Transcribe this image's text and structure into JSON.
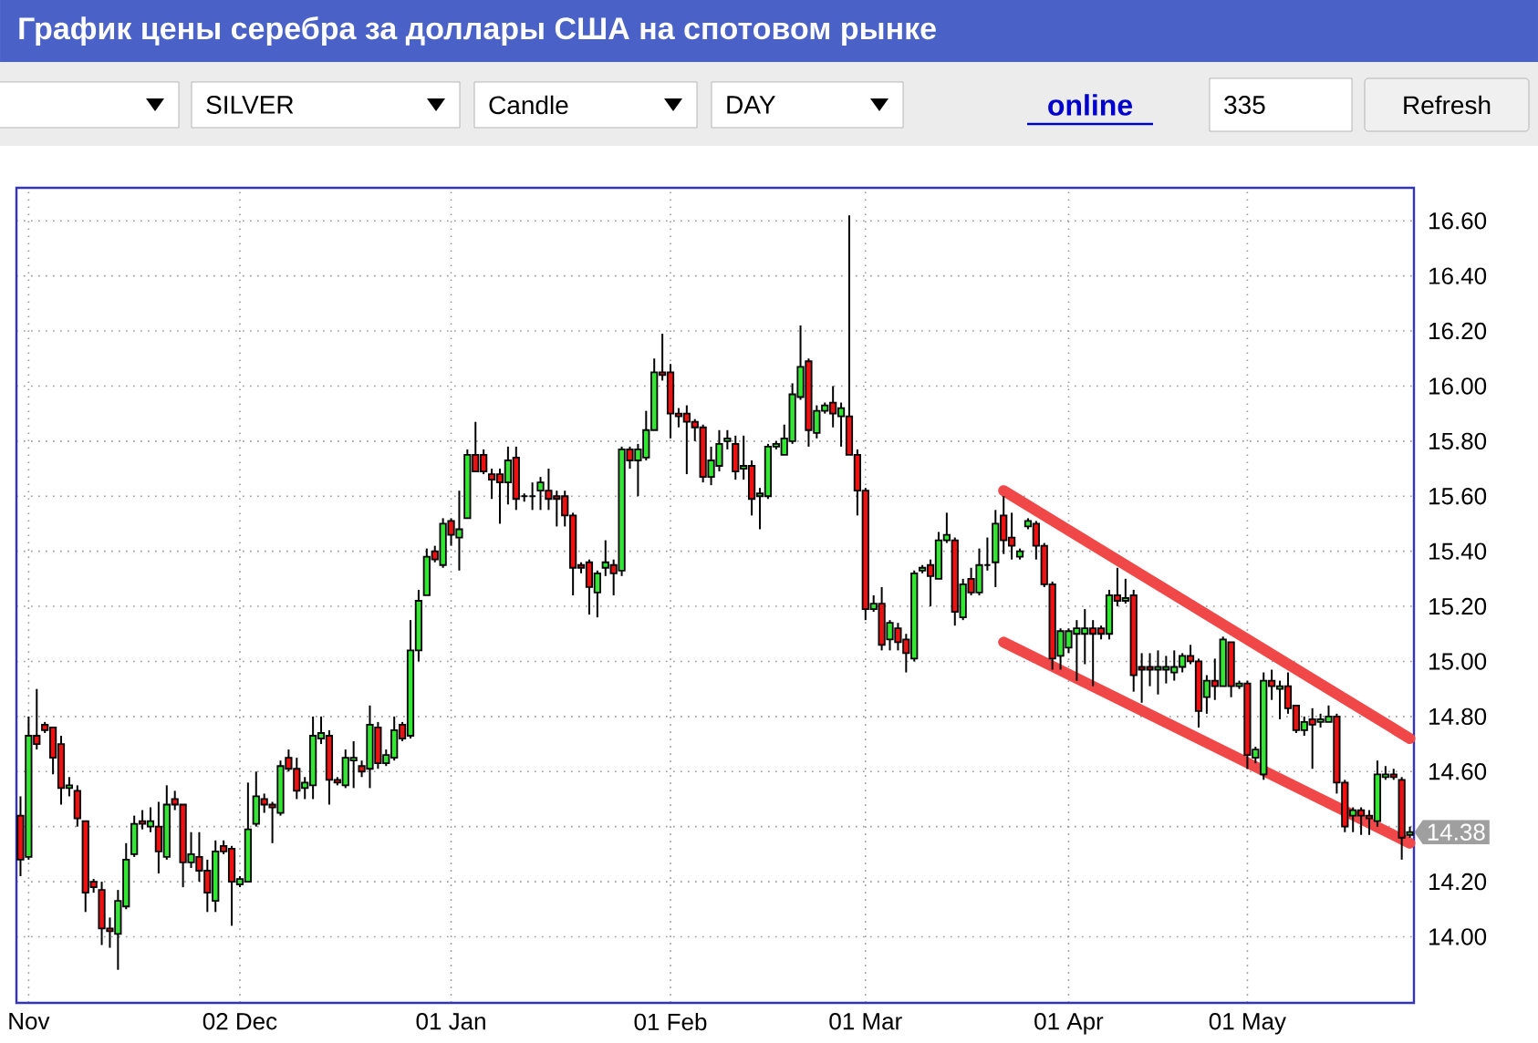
{
  "chart_data": {
    "type": "candlestick",
    "title": "График цены серебра за доллары США на спотовом рынке",
    "annotations": [
      "SILVER",
      "Candle",
      "DAY",
      "online",
      "335",
      "Refresh",
      "14.38"
    ],
    "categories": [
      null,
      "Nov",
      null,
      null,
      null,
      null,
      null,
      null,
      null,
      null,
      null,
      null,
      null,
      null,
      null,
      null,
      null,
      null,
      null,
      null,
      null,
      null,
      null,
      null,
      null,
      null,
      null,
      "02 Dec",
      null,
      null,
      null,
      null,
      null,
      null,
      null,
      null,
      null,
      null,
      null,
      null,
      null,
      null,
      null,
      null,
      null,
      null,
      null,
      null,
      null,
      null,
      null,
      null,
      null,
      "01 Jan",
      null,
      null,
      null,
      null,
      null,
      null,
      null,
      null,
      null,
      null,
      null,
      null,
      null,
      null,
      null,
      null,
      null,
      null,
      null,
      null,
      null,
      null,
      null,
      null,
      null,
      null,
      "01 Feb",
      null,
      null,
      null,
      null,
      null,
      null,
      null,
      null,
      null,
      null,
      null,
      null,
      null,
      null,
      null,
      null,
      null,
      null,
      null,
      null,
      null,
      null,
      null,
      "01 Mar",
      null,
      null,
      null,
      null,
      null,
      null,
      null,
      null,
      null,
      null,
      null,
      null,
      null,
      null,
      null,
      null,
      null,
      null,
      null,
      null,
      null,
      null,
      null,
      null,
      "01 Apr",
      null,
      null,
      null,
      null,
      null,
      null,
      null,
      null,
      null,
      null,
      null,
      null,
      null,
      null,
      null,
      null,
      null,
      null,
      null,
      null,
      null,
      "01 May",
      null,
      null,
      null,
      null,
      null,
      null,
      null,
      null,
      null,
      null,
      null,
      null,
      null,
      null,
      null,
      null,
      null,
      null,
      null,
      null
    ],
    "ylim": [
      13.76,
      16.72
    ],
    "yticks": [
      {
        "value": 14,
        "label": "14.00"
      },
      {
        "value": 14.2,
        "label": "14.20"
      },
      {
        "value": 14.4,
        "label": null
      },
      {
        "value": 14.6,
        "label": "14.60"
      },
      {
        "value": 14.8,
        "label": "14.80"
      },
      {
        "value": 15,
        "label": "15.00"
      },
      {
        "value": 15.2,
        "label": "15.20"
      },
      {
        "value": 15.4,
        "label": "15.40"
      },
      {
        "value": 15.6,
        "label": "15.60"
      },
      {
        "value": 15.8,
        "label": "15.80"
      },
      {
        "value": 16,
        "label": "16.00"
      },
      {
        "value": 16.2,
        "label": "16.20"
      },
      {
        "value": 16.4,
        "label": "16.40"
      },
      {
        "value": 16.6,
        "label": "16.60"
      }
    ],
    "grid": true,
    "series": [
      {
        "type": "line",
        "color": "#f04848",
        "values": [
          null,
          null,
          null,
          null,
          null,
          null,
          null,
          null,
          null,
          null,
          null,
          null,
          null,
          null,
          null,
          null,
          null,
          null,
          null,
          null,
          null,
          null,
          null,
          null,
          null,
          null,
          null,
          null,
          null,
          null,
          null,
          null,
          null,
          null,
          null,
          null,
          null,
          null,
          null,
          null,
          null,
          null,
          null,
          null,
          null,
          null,
          null,
          null,
          null,
          null,
          null,
          null,
          null,
          null,
          null,
          null,
          null,
          null,
          null,
          null,
          null,
          null,
          null,
          null,
          null,
          null,
          null,
          null,
          null,
          null,
          null,
          null,
          null,
          null,
          null,
          null,
          null,
          null,
          null,
          null,
          null,
          null,
          null,
          null,
          null,
          null,
          null,
          null,
          null,
          null,
          null,
          null,
          null,
          null,
          null,
          null,
          null,
          null,
          null,
          null,
          null,
          null,
          null,
          null,
          null,
          null,
          null,
          null,
          null,
          null,
          null,
          null,
          null,
          null,
          null,
          null,
          null,
          null,
          null,
          null,
          null,
          15.62,
          null,
          null,
          null,
          null,
          null,
          null,
          null,
          null,
          null,
          null,
          null,
          null,
          null,
          null,
          null,
          null,
          null,
          null,
          null,
          null,
          null,
          null,
          null,
          null,
          null,
          null,
          null,
          null,
          null,
          null,
          null,
          null,
          null,
          null,
          null,
          null,
          null,
          null,
          null,
          null,
          null,
          null,
          null,
          null,
          null,
          null,
          null,
          null,
          null,
          14.72
        ]
      },
      {
        "type": "line",
        "color": "#f04848",
        "values": [
          null,
          null,
          null,
          null,
          null,
          null,
          null,
          null,
          null,
          null,
          null,
          null,
          null,
          null,
          null,
          null,
          null,
          null,
          null,
          null,
          null,
          null,
          null,
          null,
          null,
          null,
          null,
          null,
          null,
          null,
          null,
          null,
          null,
          null,
          null,
          null,
          null,
          null,
          null,
          null,
          null,
          null,
          null,
          null,
          null,
          null,
          null,
          null,
          null,
          null,
          null,
          null,
          null,
          null,
          null,
          null,
          null,
          null,
          null,
          null,
          null,
          null,
          null,
          null,
          null,
          null,
          null,
          null,
          null,
          null,
          null,
          null,
          null,
          null,
          null,
          null,
          null,
          null,
          null,
          null,
          null,
          null,
          null,
          null,
          null,
          null,
          null,
          null,
          null,
          null,
          null,
          null,
          null,
          null,
          null,
          null,
          null,
          null,
          null,
          null,
          null,
          null,
          null,
          null,
          null,
          null,
          null,
          null,
          null,
          null,
          null,
          null,
          null,
          null,
          null,
          null,
          null,
          null,
          null,
          null,
          null,
          15.07,
          null,
          null,
          null,
          null,
          null,
          null,
          null,
          null,
          null,
          null,
          null,
          null,
          null,
          null,
          null,
          null,
          null,
          null,
          null,
          null,
          null,
          null,
          null,
          null,
          null,
          null,
          null,
          null,
          null,
          null,
          null,
          null,
          null,
          null,
          null,
          null,
          null,
          null,
          null,
          null,
          null,
          null,
          null,
          null,
          null,
          null,
          null,
          null,
          null,
          14.34
        ]
      }
    ],
    "ohlc": [
      [
        14.44,
        14.51,
        14.22,
        14.28
      ],
      [
        14.29,
        14.8,
        14.28,
        14.73
      ],
      [
        14.73,
        14.9,
        14.68,
        14.7
      ],
      [
        14.77,
        14.78,
        14.74,
        14.75
      ],
      [
        14.76,
        14.76,
        14.59,
        14.65
      ],
      [
        14.7,
        14.73,
        14.48,
        14.54
      ],
      [
        14.54,
        14.58,
        14.51,
        14.55
      ],
      [
        14.53,
        14.55,
        14.4,
        14.43
      ],
      [
        14.42,
        14.42,
        14.09,
        14.16
      ],
      [
        14.2,
        14.21,
        14.16,
        14.18
      ],
      [
        14.17,
        14.2,
        13.97,
        14.03
      ],
      [
        14.03,
        14.07,
        13.96,
        14.02
      ],
      [
        14.01,
        14.17,
        13.88,
        14.13
      ],
      [
        14.11,
        14.34,
        14.1,
        14.28
      ],
      [
        14.3,
        14.44,
        14.29,
        14.41
      ],
      [
        14.42,
        14.46,
        14.39,
        14.41
      ],
      [
        14.4,
        14.47,
        14.38,
        14.42
      ],
      [
        14.4,
        14.49,
        14.23,
        14.31
      ],
      [
        14.29,
        14.55,
        14.28,
        14.48
      ],
      [
        14.5,
        14.53,
        14.46,
        14.48
      ],
      [
        14.48,
        14.48,
        14.18,
        14.27
      ],
      [
        14.27,
        14.38,
        14.25,
        14.3
      ],
      [
        14.29,
        14.38,
        14.2,
        14.24
      ],
      [
        14.24,
        14.28,
        14.09,
        14.16
      ],
      [
        14.13,
        14.35,
        14.09,
        14.31
      ],
      [
        14.33,
        14.35,
        14.3,
        14.31
      ],
      [
        14.32,
        14.33,
        14.04,
        14.2
      ],
      [
        14.19,
        14.22,
        14.18,
        14.21
      ],
      [
        14.2,
        14.56,
        14.2,
        14.39
      ],
      [
        14.41,
        14.6,
        14.4,
        14.51
      ],
      [
        14.5,
        14.52,
        14.45,
        14.48
      ],
      [
        14.48,
        14.49,
        14.34,
        14.47
      ],
      [
        14.45,
        14.64,
        14.44,
        14.62
      ],
      [
        14.65,
        14.68,
        14.6,
        14.61
      ],
      [
        14.61,
        14.65,
        14.5,
        14.53
      ],
      [
        14.54,
        14.58,
        14.5,
        14.56
      ],
      [
        14.55,
        14.8,
        14.5,
        14.73
      ],
      [
        14.72,
        14.8,
        14.7,
        14.74
      ],
      [
        14.73,
        14.75,
        14.48,
        14.57
      ],
      [
        14.57,
        14.58,
        14.55,
        14.56
      ],
      [
        14.55,
        14.68,
        14.54,
        14.65
      ],
      [
        14.64,
        14.71,
        14.54,
        14.65
      ],
      [
        14.62,
        14.64,
        14.58,
        14.6
      ],
      [
        14.61,
        14.84,
        14.54,
        14.77
      ],
      [
        14.76,
        14.78,
        14.61,
        14.63
      ],
      [
        14.63,
        14.68,
        14.62,
        14.66
      ],
      [
        14.65,
        14.8,
        14.64,
        14.75
      ],
      [
        14.77,
        14.78,
        14.71,
        14.72
      ],
      [
        14.73,
        15.15,
        14.72,
        15.04
      ],
      [
        15.04,
        15.26,
        15.0,
        15.22
      ],
      [
        15.24,
        15.41,
        15.24,
        15.38
      ],
      [
        15.4,
        15.42,
        15.36,
        15.37
      ],
      [
        15.35,
        15.52,
        15.34,
        15.5
      ],
      [
        15.51,
        15.52,
        15.42,
        15.46
      ],
      [
        15.45,
        15.62,
        15.33,
        15.48
      ],
      [
        15.52,
        15.77,
        15.52,
        15.75
      ],
      [
        15.75,
        15.87,
        15.69,
        15.69
      ],
      [
        15.75,
        15.77,
        15.68,
        15.69
      ],
      [
        15.68,
        15.7,
        15.59,
        15.66
      ],
      [
        15.68,
        15.7,
        15.5,
        15.65
      ],
      [
        15.65,
        15.78,
        15.57,
        15.73
      ],
      [
        15.74,
        15.78,
        15.55,
        15.59
      ],
      [
        15.6,
        15.61,
        15.58,
        15.6
      ],
      [
        15.6,
        15.65,
        15.55,
        15.6
      ],
      [
        15.62,
        15.67,
        15.55,
        15.65
      ],
      [
        15.62,
        15.7,
        15.55,
        15.59
      ],
      [
        15.6,
        15.62,
        15.49,
        15.59
      ],
      [
        15.6,
        15.62,
        15.49,
        15.53
      ],
      [
        15.53,
        15.54,
        15.24,
        15.34
      ],
      [
        15.35,
        15.36,
        15.32,
        15.34
      ],
      [
        15.36,
        15.37,
        15.17,
        15.27
      ],
      [
        15.25,
        15.33,
        15.16,
        15.32
      ],
      [
        15.34,
        15.44,
        15.31,
        15.36
      ],
      [
        15.35,
        15.37,
        15.24,
        15.32
      ],
      [
        15.33,
        15.78,
        15.31,
        15.77
      ],
      [
        15.77,
        15.78,
        15.7,
        15.73
      ],
      [
        15.73,
        15.79,
        15.6,
        15.77
      ],
      [
        15.74,
        15.91,
        15.73,
        15.84
      ],
      [
        15.84,
        16.1,
        15.84,
        16.05
      ],
      [
        16.05,
        16.19,
        16.02,
        16.04
      ],
      [
        16.05,
        16.08,
        15.81,
        15.9
      ],
      [
        15.9,
        15.92,
        15.85,
        15.89
      ],
      [
        15.9,
        15.93,
        15.68,
        15.87
      ],
      [
        15.87,
        15.88,
        15.8,
        15.85
      ],
      [
        15.85,
        15.86,
        15.65,
        15.67
      ],
      [
        15.67,
        15.78,
        15.64,
        15.73
      ],
      [
        15.71,
        15.84,
        15.69,
        15.79
      ],
      [
        15.8,
        15.84,
        15.77,
        15.81
      ],
      [
        15.79,
        15.82,
        15.66,
        15.69
      ],
      [
        15.7,
        15.82,
        15.66,
        15.71
      ],
      [
        15.71,
        15.73,
        15.53,
        15.59
      ],
      [
        15.6,
        15.63,
        15.48,
        15.61
      ],
      [
        15.6,
        15.79,
        15.59,
        15.78
      ],
      [
        15.78,
        15.8,
        15.77,
        15.79
      ],
      [
        15.75,
        15.86,
        15.75,
        15.81
      ],
      [
        15.8,
        16.01,
        15.79,
        15.97
      ],
      [
        15.96,
        16.22,
        15.95,
        16.07
      ],
      [
        16.09,
        16.1,
        15.78,
        15.84
      ],
      [
        15.83,
        15.93,
        15.81,
        15.91
      ],
      [
        15.91,
        15.94,
        15.9,
        15.93
      ],
      [
        15.94,
        16.0,
        15.85,
        15.9
      ],
      [
        15.89,
        15.94,
        15.78,
        15.92
      ],
      [
        15.89,
        16.62,
        15.75,
        15.75
      ],
      [
        15.75,
        15.77,
        15.53,
        15.62
      ],
      [
        15.62,
        15.63,
        15.15,
        15.19
      ],
      [
        15.19,
        15.24,
        15.18,
        15.21
      ],
      [
        15.21,
        15.27,
        15.04,
        15.06
      ],
      [
        15.08,
        15.15,
        15.04,
        15.14
      ],
      [
        15.12,
        15.14,
        15.04,
        15.07
      ],
      [
        15.08,
        15.1,
        14.96,
        15.03
      ],
      [
        15.01,
        15.33,
        15.0,
        15.32
      ],
      [
        15.33,
        15.35,
        15.32,
        15.34
      ],
      [
        15.35,
        15.37,
        15.2,
        15.31
      ],
      [
        15.3,
        15.47,
        15.3,
        15.44
      ],
      [
        15.44,
        15.54,
        15.43,
        15.46
      ],
      [
        15.44,
        15.45,
        15.13,
        15.18
      ],
      [
        15.16,
        15.3,
        15.15,
        15.28
      ],
      [
        15.3,
        15.34,
        15.24,
        15.25
      ],
      [
        15.25,
        15.41,
        15.24,
        15.35
      ],
      [
        15.35,
        15.45,
        15.33,
        15.35
      ],
      [
        15.36,
        15.55,
        15.27,
        15.5
      ],
      [
        15.53,
        15.6,
        15.39,
        15.44
      ],
      [
        15.45,
        15.54,
        15.37,
        15.42
      ],
      [
        15.38,
        15.41,
        15.37,
        15.4
      ],
      [
        15.49,
        15.52,
        15.48,
        15.51
      ],
      [
        15.5,
        15.51,
        15.37,
        15.42
      ],
      [
        15.42,
        15.43,
        15.27,
        15.28
      ],
      [
        15.28,
        15.29,
        14.97,
        15.01
      ],
      [
        15.02,
        15.12,
        14.97,
        15.11
      ],
      [
        15.05,
        15.12,
        15.03,
        15.11
      ],
      [
        15.1,
        15.15,
        14.93,
        15.12
      ],
      [
        15.1,
        15.19,
        14.99,
        15.12
      ],
      [
        15.12,
        15.15,
        14.91,
        15.1
      ],
      [
        15.12,
        15.13,
        15.08,
        15.1
      ],
      [
        15.1,
        15.26,
        15.08,
        15.24
      ],
      [
        15.24,
        15.34,
        15.2,
        15.22
      ],
      [
        15.22,
        15.3,
        15.21,
        15.23
      ],
      [
        15.24,
        15.26,
        14.89,
        14.95
      ],
      [
        14.98,
        15.03,
        14.85,
        14.97
      ],
      [
        14.98,
        15.03,
        14.91,
        14.97
      ],
      [
        14.97,
        15.04,
        14.88,
        14.98
      ],
      [
        14.97,
        15.02,
        14.92,
        14.98
      ],
      [
        14.96,
        15.04,
        14.93,
        14.98
      ],
      [
        14.98,
        15.03,
        14.96,
        15.02
      ],
      [
        15.02,
        15.06,
        14.99,
        15.0
      ],
      [
        15.0,
        15.01,
        14.76,
        14.82
      ],
      [
        14.87,
        14.95,
        14.81,
        14.93
      ],
      [
        14.93,
        15.01,
        14.86,
        14.91
      ],
      [
        14.91,
        15.09,
        14.91,
        15.08
      ],
      [
        15.07,
        15.07,
        14.87,
        14.91
      ],
      [
        14.91,
        14.93,
        14.9,
        14.92
      ],
      [
        14.92,
        14.93,
        14.61,
        14.66
      ],
      [
        14.65,
        14.69,
        14.63,
        14.68
      ],
      [
        14.59,
        14.96,
        14.57,
        14.93
      ],
      [
        14.93,
        14.97,
        14.86,
        14.91
      ],
      [
        14.9,
        14.93,
        14.79,
        14.91
      ],
      [
        14.91,
        14.96,
        14.81,
        14.83
      ],
      [
        14.84,
        14.84,
        14.74,
        14.75
      ],
      [
        14.75,
        14.8,
        14.73,
        14.78
      ],
      [
        14.79,
        14.83,
        14.61,
        14.77
      ],
      [
        14.78,
        14.81,
        14.76,
        14.79
      ],
      [
        14.78,
        14.84,
        14.78,
        14.8
      ],
      [
        14.8,
        14.81,
        14.52,
        14.56
      ],
      [
        14.56,
        14.57,
        14.38,
        14.4
      ],
      [
        14.44,
        14.47,
        14.38,
        14.46
      ],
      [
        14.46,
        14.47,
        14.37,
        14.44
      ],
      [
        14.44,
        14.46,
        14.37,
        14.43
      ],
      [
        14.42,
        14.64,
        14.4,
        14.59
      ],
      [
        14.58,
        14.62,
        14.57,
        14.59
      ],
      [
        14.59,
        14.61,
        14.57,
        14.58
      ],
      [
        14.57,
        14.58,
        14.28,
        14.36
      ],
      [
        14.37,
        14.4,
        14.36,
        14.38
      ]
    ]
  }
}
